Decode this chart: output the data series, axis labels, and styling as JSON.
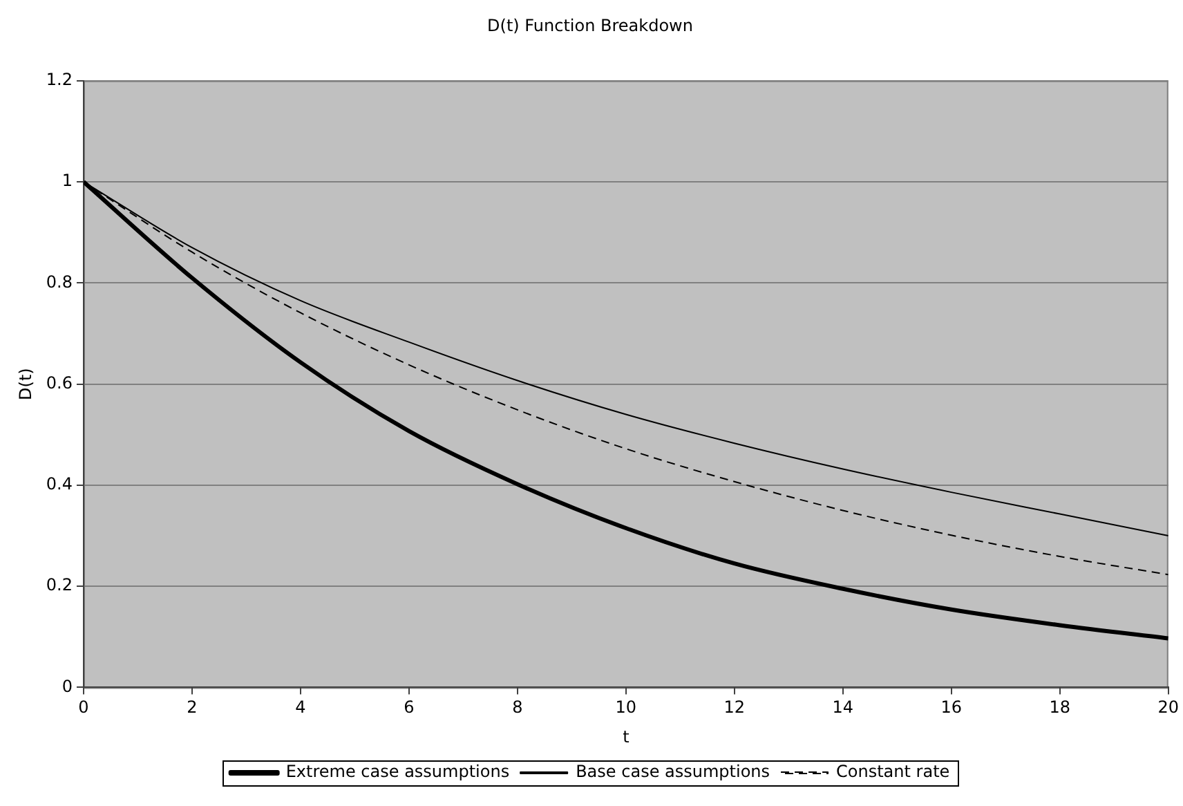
{
  "chart_data": {
    "type": "line",
    "title": "D(t) Function Breakdown",
    "xlabel": "t",
    "ylabel": "D(t)",
    "x": [
      0,
      2,
      4,
      6,
      8,
      10,
      12,
      14,
      16,
      18,
      20
    ],
    "xlim": [
      0,
      20
    ],
    "xticks": [
      0,
      2,
      4,
      6,
      8,
      10,
      12,
      14,
      16,
      18,
      20
    ],
    "ylim": [
      0,
      1.2
    ],
    "yticks": [
      0,
      0.2,
      0.4,
      0.6,
      0.8,
      1,
      1.2
    ],
    "grid": "y",
    "legend": "bottom",
    "marker": "none",
    "series": [
      {
        "name": "Extreme case assumptions",
        "color": "#000000",
        "line_style": "solid",
        "values": [
          1,
          0.81,
          0.643,
          0.507,
          0.402,
          0.315,
          0.245,
          0.195,
          0.154,
          0.123,
          0.097
        ]
      },
      {
        "name": "Base case assumptions",
        "color": "#000000",
        "line_style": "solid",
        "values": [
          1,
          0.87,
          0.765,
          0.683,
          0.607,
          0.54,
          0.483,
          0.432,
          0.386,
          0.343,
          0.3
        ]
      },
      {
        "name": "Constant rate",
        "color": "#000000",
        "line_style": "dashed",
        "values": [
          1,
          0.861,
          0.741,
          0.638,
          0.549,
          0.472,
          0.407,
          0.35,
          0.301,
          0.259,
          0.223
        ]
      }
    ]
  }
}
